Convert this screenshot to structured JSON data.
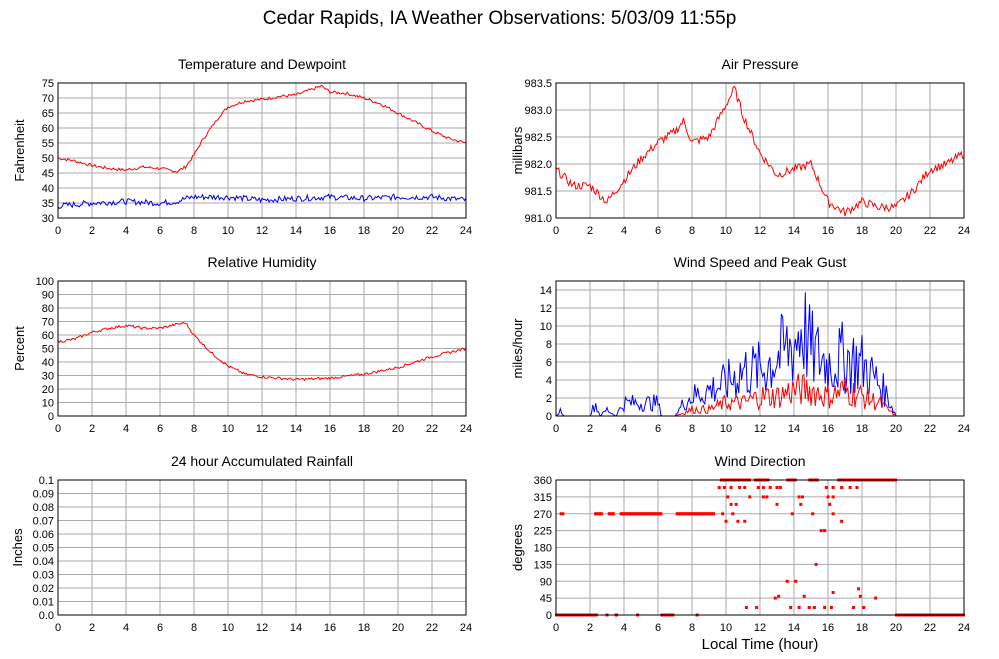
{
  "page": {
    "title": "Cedar Rapids, IA Weather Observations: 5/03/09 11:55p",
    "x_axis_label": "Local Time (hour)"
  },
  "colors": {
    "primary": "#ff0000",
    "secondary": "#0000ff",
    "grid": "#aaaaaa",
    "frame": "#000000"
  },
  "chart_data": [
    {
      "id": "temp",
      "type": "line",
      "title": "Temperature and Dewpoint",
      "xlabel": "",
      "ylabel": "Fahrenheit",
      "xlim": [
        0,
        24
      ],
      "ylim": [
        30,
        75
      ],
      "xticks": [
        0,
        2,
        4,
        6,
        8,
        10,
        12,
        14,
        16,
        18,
        20,
        22,
        24
      ],
      "yticks": [
        30,
        35,
        40,
        45,
        50,
        55,
        60,
        65,
        70,
        75
      ],
      "ytick_labels": [
        "30",
        "35",
        "40",
        "45",
        "50",
        "55",
        "60",
        "65",
        "70",
        "75"
      ],
      "grid": true,
      "series": [
        {
          "color": "#ff0000",
          "noise": 0.5,
          "x": [
            0,
            1,
            2,
            3,
            4,
            5,
            6,
            7,
            7.5,
            8,
            8.5,
            9,
            9.5,
            10,
            11,
            12,
            13,
            14,
            15,
            15.5,
            16,
            17,
            18,
            19,
            20,
            21,
            22,
            23,
            24
          ],
          "y": [
            50,
            49,
            47.5,
            46.5,
            46,
            47,
            46.5,
            45.5,
            47,
            51,
            56,
            60,
            64,
            67,
            69,
            69.5,
            70.5,
            71,
            73,
            74,
            72,
            71.5,
            70,
            68,
            65,
            62,
            59,
            56.5,
            55
          ]
        },
        {
          "color": "#0000ff",
          "noise": 1.0,
          "x": [
            0,
            2,
            4,
            6,
            7,
            7.5,
            8,
            10,
            12,
            14,
            16,
            18,
            20,
            22,
            24
          ],
          "y": [
            34,
            35,
            35.5,
            35,
            35.5,
            36.5,
            37,
            37,
            36,
            36.5,
            37,
            36.5,
            37,
            37,
            36
          ]
        }
      ]
    },
    {
      "id": "pressure",
      "type": "line",
      "title": "Air Pressure",
      "xlabel": "",
      "ylabel": "millibars",
      "xlim": [
        0,
        24
      ],
      "ylim": [
        981.0,
        983.5
      ],
      "xticks": [
        0,
        2,
        4,
        6,
        8,
        10,
        12,
        14,
        16,
        18,
        20,
        22,
        24
      ],
      "yticks": [
        981.0,
        981.5,
        982.0,
        982.5,
        983.0,
        983.5
      ],
      "ytick_labels": [
        "981.0",
        "981.5",
        "982.0",
        "982.5",
        "983.0",
        "983.5"
      ],
      "grid": true,
      "series": [
        {
          "color": "#ff0000",
          "noise": 0.08,
          "x": [
            0,
            1,
            2,
            3,
            4,
            5,
            6,
            7,
            7.5,
            8,
            9,
            10,
            10.5,
            11,
            12,
            13,
            14,
            15,
            16,
            17,
            18,
            19,
            20,
            21,
            22,
            23,
            24
          ],
          "y": [
            981.9,
            981.6,
            981.6,
            981.3,
            981.7,
            982.1,
            982.4,
            982.6,
            982.8,
            982.4,
            982.5,
            983.1,
            983.4,
            982.9,
            982.2,
            981.8,
            981.9,
            982.0,
            981.3,
            981.1,
            981.3,
            981.2,
            981.2,
            981.5,
            981.9,
            982.0,
            982.2
          ]
        }
      ]
    },
    {
      "id": "humidity",
      "type": "line",
      "title": "Relative Humidity",
      "xlabel": "",
      "ylabel": "Percent",
      "xlim": [
        0,
        24
      ],
      "ylim": [
        0,
        100
      ],
      "xticks": [
        0,
        2,
        4,
        6,
        8,
        10,
        12,
        14,
        16,
        18,
        20,
        22,
        24
      ],
      "yticks": [
        0,
        10,
        20,
        30,
        40,
        50,
        60,
        70,
        80,
        90,
        100
      ],
      "ytick_labels": [
        "0",
        "10",
        "20",
        "30",
        "40",
        "50",
        "60",
        "70",
        "80",
        "90",
        "100"
      ],
      "grid": true,
      "series": [
        {
          "color": "#ff0000",
          "noise": 1.0,
          "x": [
            0,
            1,
            2,
            3,
            4,
            5,
            6,
            7,
            7.5,
            8,
            9,
            10,
            11,
            12,
            14,
            16,
            18,
            20,
            22,
            24
          ],
          "y": [
            55,
            57,
            62,
            65,
            67,
            65,
            65,
            68,
            69,
            60,
            47,
            37,
            31,
            29,
            27,
            28,
            31,
            36,
            44,
            50
          ]
        }
      ]
    },
    {
      "id": "wind",
      "type": "line",
      "title": "Wind Speed and Peak Gust",
      "xlabel": "",
      "ylabel": "miles/hour",
      "xlim": [
        0,
        24
      ],
      "ylim": [
        0,
        15
      ],
      "xticks": [
        0,
        2,
        4,
        6,
        8,
        10,
        12,
        14,
        16,
        18,
        20,
        22,
        24
      ],
      "yticks": [
        0,
        2,
        4,
        6,
        8,
        10,
        12,
        14
      ],
      "ytick_labels": [
        "0",
        "2",
        "4",
        "6",
        "8",
        "10",
        "12",
        "14"
      ],
      "grid": true,
      "series": [
        {
          "color": "#0000ff",
          "spiky": true,
          "x": [
            0,
            0.3,
            0.5,
            0.8,
            1,
            2,
            2.3,
            2.6,
            3,
            3.5,
            4,
            4.3,
            5,
            5.5,
            6,
            6.2,
            6.5,
            7,
            7.5,
            8,
            9,
            10,
            11,
            12,
            13,
            14,
            14.5,
            15,
            16,
            17,
            18,
            19,
            19.5,
            20,
            21,
            22,
            23,
            24
          ],
          "y": [
            0,
            1,
            0,
            0,
            0,
            0,
            2,
            0,
            1,
            0,
            2,
            2,
            2,
            2,
            2,
            0,
            0,
            0,
            2,
            3,
            4,
            5,
            7,
            7,
            9,
            11,
            14,
            10,
            8,
            9,
            8,
            5,
            3,
            0,
            0,
            0,
            0,
            0
          ]
        },
        {
          "color": "#ff0000",
          "spiky": true,
          "x": [
            0,
            7,
            8,
            9,
            10,
            11,
            12,
            13,
            14,
            15,
            16,
            17,
            18,
            19,
            19.5,
            20,
            21,
            24
          ],
          "y": [
            0,
            0,
            1,
            1,
            2,
            2,
            3,
            3,
            4,
            4,
            3,
            4,
            3,
            2,
            1,
            0,
            0,
            0
          ]
        }
      ]
    },
    {
      "id": "rain",
      "type": "line",
      "title": "24 hour Accumulated Rainfall",
      "xlabel": "",
      "ylabel": "Inches",
      "xlim": [
        0,
        24
      ],
      "ylim": [
        0,
        0.1
      ],
      "xticks": [
        0,
        2,
        4,
        6,
        8,
        10,
        12,
        14,
        16,
        18,
        20,
        22,
        24
      ],
      "yticks": [
        0,
        0.01,
        0.02,
        0.03,
        0.04,
        0.05,
        0.06,
        0.07,
        0.08,
        0.09,
        0.1
      ],
      "ytick_labels": [
        "0.0",
        "0.01",
        "0.02",
        "0.03",
        "0.04",
        "0.05",
        "0.06",
        "0.07",
        "0.08",
        "0.09",
        "0.1"
      ],
      "grid": true,
      "series": [
        {
          "color": "#ff0000",
          "x": [
            0,
            24
          ],
          "y": [
            0,
            0
          ]
        }
      ]
    },
    {
      "id": "direction",
      "type": "scatter",
      "title": "Wind Direction",
      "xlabel": "Local Time (hour)",
      "ylabel": "degrees",
      "xlim": [
        0,
        24
      ],
      "ylim": [
        0,
        360
      ],
      "xticks": [
        0,
        2,
        4,
        6,
        8,
        10,
        12,
        14,
        16,
        18,
        20,
        22,
        24
      ],
      "yticks": [
        0,
        45,
        90,
        135,
        180,
        225,
        270,
        315,
        360
      ],
      "ytick_labels": [
        "0",
        "45",
        "90",
        "135",
        "180",
        "225",
        "270",
        "315",
        "360"
      ],
      "grid": true,
      "segments": [
        {
          "x0": 0.0,
          "x1": 2.0,
          "y": 0
        },
        {
          "x0": 2.1,
          "x1": 2.4,
          "y": 0
        },
        {
          "x0": 3.5,
          "x1": 3.6,
          "y": 0
        },
        {
          "x0": 6.2,
          "x1": 6.9,
          "y": 0
        },
        {
          "x0": 2.3,
          "x1": 2.7,
          "y": 270
        },
        {
          "x0": 3.1,
          "x1": 3.4,
          "y": 270
        },
        {
          "x0": 3.8,
          "x1": 6.2,
          "y": 270
        },
        {
          "x0": 7.1,
          "x1": 9.3,
          "y": 270
        },
        {
          "x0": 9.7,
          "x1": 11.4,
          "y": 360
        },
        {
          "x0": 11.7,
          "x1": 12.5,
          "y": 360
        },
        {
          "x0": 13.6,
          "x1": 14.1,
          "y": 360
        },
        {
          "x0": 14.9,
          "x1": 15.4,
          "y": 360
        },
        {
          "x0": 16.6,
          "x1": 20.0,
          "y": 360
        },
        {
          "x0": 20.0,
          "x1": 24.0,
          "y": 0
        }
      ],
      "points": [
        [
          0.3,
          270
        ],
        [
          0.4,
          270
        ],
        [
          3.0,
          0
        ],
        [
          4.8,
          0
        ],
        [
          8.3,
          0
        ],
        [
          9.6,
          340
        ],
        [
          9.9,
          340
        ],
        [
          10.3,
          340
        ],
        [
          10.8,
          340
        ],
        [
          11.1,
          340
        ],
        [
          11.9,
          340
        ],
        [
          12.2,
          340
        ],
        [
          12.6,
          340
        ],
        [
          13.0,
          340
        ],
        [
          13.2,
          340
        ],
        [
          15.9,
          340
        ],
        [
          16.3,
          340
        ],
        [
          16.8,
          340
        ],
        [
          17.3,
          340
        ],
        [
          17.7,
          340
        ],
        [
          10.1,
          315
        ],
        [
          11.4,
          315
        ],
        [
          12.2,
          315
        ],
        [
          12.4,
          315
        ],
        [
          14.3,
          315
        ],
        [
          14.5,
          315
        ],
        [
          16.0,
          315
        ],
        [
          16.3,
          315
        ],
        [
          10.3,
          295
        ],
        [
          10.6,
          295
        ],
        [
          13.0,
          295
        ],
        [
          14.4,
          295
        ],
        [
          16.1,
          295
        ],
        [
          9.8,
          270
        ],
        [
          10.4,
          270
        ],
        [
          13.9,
          270
        ],
        [
          15.1,
          270
        ],
        [
          16.3,
          270
        ],
        [
          10.0,
          250
        ],
        [
          10.7,
          250
        ],
        [
          11.1,
          250
        ],
        [
          16.8,
          250
        ],
        [
          15.6,
          225
        ],
        [
          15.8,
          225
        ],
        [
          15.3,
          135
        ],
        [
          13.6,
          90
        ],
        [
          14.1,
          90
        ],
        [
          17.8,
          70
        ],
        [
          16.3,
          60
        ],
        [
          13.1,
          50
        ],
        [
          14.6,
          50
        ],
        [
          17.9,
          50
        ],
        [
          11.2,
          20
        ],
        [
          11.8,
          20
        ],
        [
          12.9,
          45
        ],
        [
          13.8,
          20
        ],
        [
          14.3,
          20
        ],
        [
          14.9,
          20
        ],
        [
          15.2,
          20
        ],
        [
          15.8,
          20
        ],
        [
          16.2,
          20
        ],
        [
          17.5,
          20
        ],
        [
          18.1,
          20
        ],
        [
          18.8,
          45
        ]
      ]
    }
  ]
}
